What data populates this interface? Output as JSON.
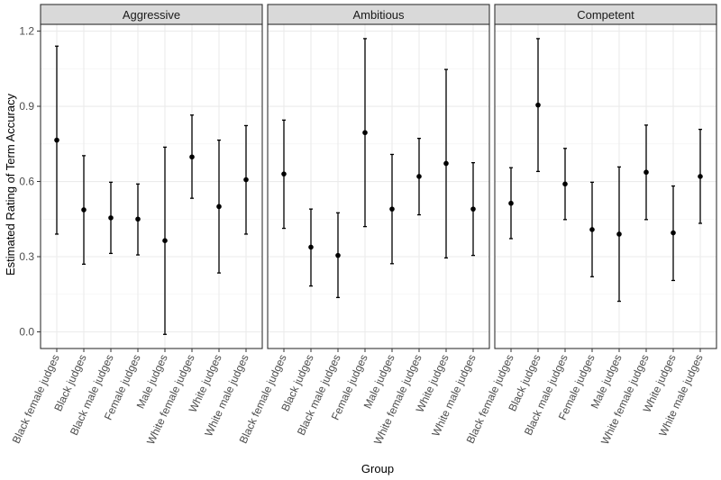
{
  "chart_data": {
    "type": "scatter",
    "style": "point-with-error-bars, faceted",
    "xlabel": "Group",
    "ylabel": "Estimated Rating of Term Accuracy",
    "ylim": [
      -0.07,
      1.27
    ],
    "yticks": [
      "0.0",
      "0.3",
      "0.6",
      "0.9",
      "1.2"
    ],
    "grid": true,
    "categories": [
      "Black female judges",
      "Black judges",
      "Black male judges",
      "Female judges",
      "Male judges",
      "White female judges",
      "White judges",
      "White male judges"
    ],
    "panels": [
      {
        "name": "Aggressive",
        "estimates": [
          0.765,
          0.487,
          0.455,
          0.45,
          0.364,
          0.698,
          0.5,
          0.607
        ],
        "lower": [
          0.39,
          0.27,
          0.313,
          0.307,
          -0.01,
          0.533,
          0.235,
          0.39
        ],
        "upper": [
          1.14,
          0.703,
          0.597,
          0.59,
          0.737,
          0.865,
          0.765,
          0.823
        ]
      },
      {
        "name": "Ambitious",
        "estimates": [
          0.63,
          0.338,
          0.305,
          0.795,
          0.49,
          0.62,
          0.672,
          0.49
        ],
        "lower": [
          0.413,
          0.183,
          0.137,
          0.42,
          0.272,
          0.467,
          0.295,
          0.305
        ],
        "upper": [
          0.845,
          0.49,
          0.475,
          1.17,
          0.708,
          0.772,
          1.047,
          0.675
        ]
      },
      {
        "name": "Competent",
        "estimates": [
          0.513,
          0.905,
          0.59,
          0.408,
          0.39,
          0.637,
          0.395,
          0.62
        ],
        "lower": [
          0.372,
          0.64,
          0.448,
          0.22,
          0.122,
          0.448,
          0.205,
          0.433
        ],
        "upper": [
          0.655,
          1.17,
          0.732,
          0.597,
          0.658,
          0.825,
          0.582,
          0.808
        ]
      }
    ]
  }
}
